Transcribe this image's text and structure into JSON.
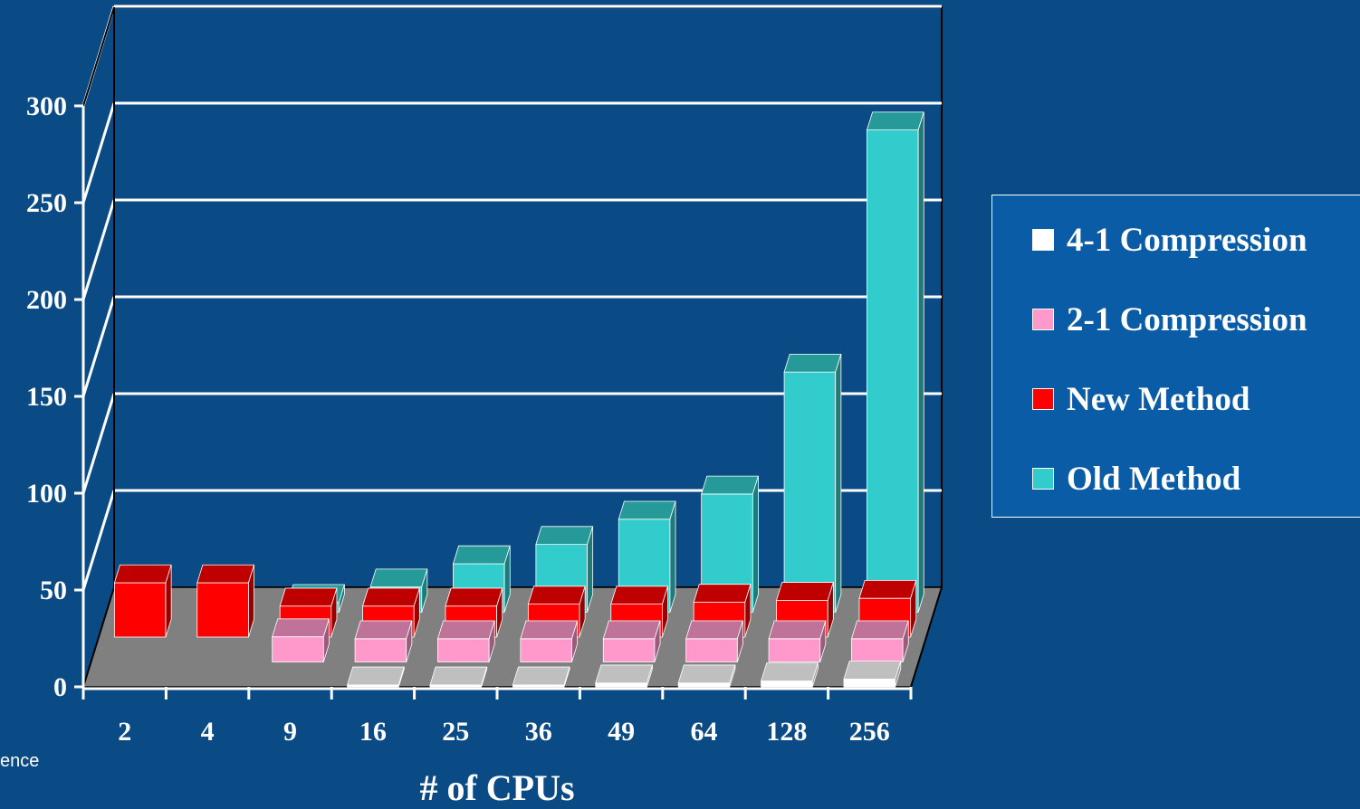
{
  "chart_data": {
    "type": "bar",
    "stacked": true,
    "three_d": true,
    "categories": [
      "2",
      "4",
      "9",
      "16",
      "25",
      "36",
      "49",
      "64",
      "128",
      "256"
    ],
    "series": [
      {
        "name": "4-1 Compression",
        "color": "#ffffff",
        "values": [
          0,
          0,
          0,
          1,
          1,
          1,
          2,
          2,
          3,
          4
        ]
      },
      {
        "name": "2-1 Compression",
        "color": "#ff99cc",
        "values": [
          0,
          0,
          13,
          12,
          12,
          12,
          12,
          12,
          12,
          12
        ]
      },
      {
        "name": "New Method",
        "color": "#ff0000",
        "values": [
          28,
          28,
          16,
          16,
          16,
          17,
          17,
          18,
          19,
          20
        ]
      },
      {
        "name": "Old Method",
        "color": "#33cccc",
        "values": [
          0,
          0,
          5,
          13,
          25,
          35,
          48,
          61,
          124,
          249
        ]
      }
    ],
    "xlabel": "# of CPUs",
    "ylabel": "",
    "ylim": [
      0,
      300
    ],
    "yticks": [
      "0",
      "50",
      "100",
      "150",
      "200",
      "250",
      "300"
    ],
    "grid": true,
    "legend_position": "right"
  },
  "legend": {
    "items": [
      {
        "label": "4-1 Compression",
        "color": "#ffffff"
      },
      {
        "label": "2-1 Compression",
        "color": "#ff99cc"
      },
      {
        "label": "New Method",
        "color": "#ff0000"
      },
      {
        "label": "Old Method",
        "color": "#33cccc"
      }
    ]
  },
  "footer": {
    "fragment": "ence"
  }
}
